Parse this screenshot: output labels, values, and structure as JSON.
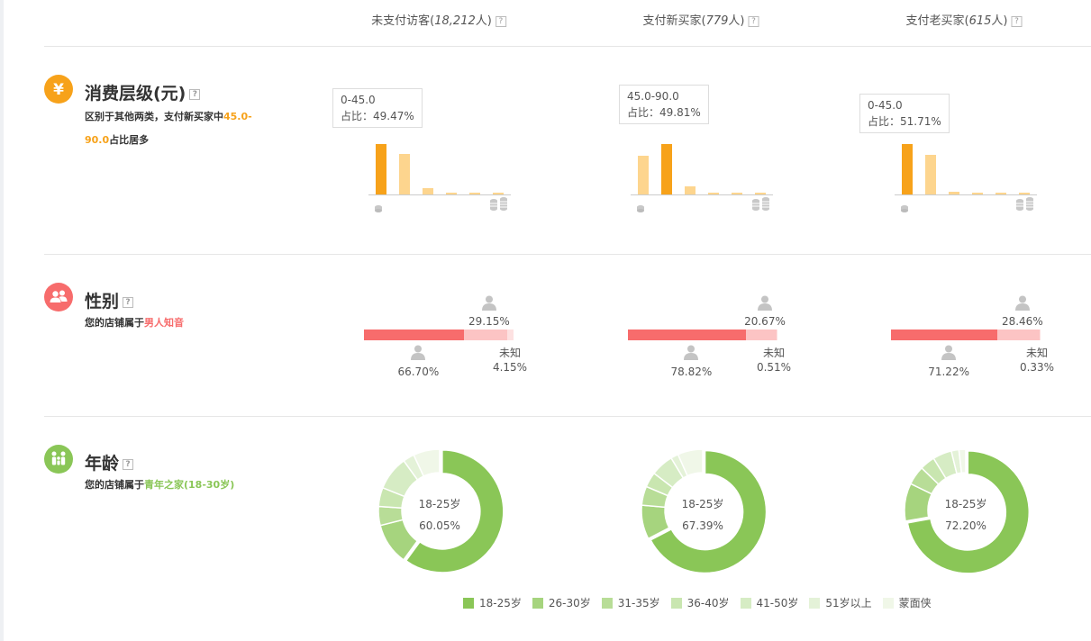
{
  "columns": [
    {
      "label": "未支付访客(",
      "count": "18,212",
      "suffix": "人)"
    },
    {
      "label": "支付新买家(",
      "count": "779",
      "suffix": "人)"
    },
    {
      "label": "支付老买家(",
      "count": "615",
      "suffix": "人)"
    }
  ],
  "help_mark": "?",
  "sections": {
    "consumption": {
      "title": "消费层级(元)",
      "desc_prefix": "区别于其他两类，支付新买家中",
      "desc_highlight": "45.0-90.0",
      "desc_suffix": "占比居多",
      "icon": "yuan-icon",
      "color": "#f7a21a"
    },
    "gender": {
      "title": "性别",
      "desc_prefix": "您的店铺属于",
      "desc_highlight": "男人知音",
      "icon": "people-icon",
      "color": "#f76c6c"
    },
    "age": {
      "title": "年龄",
      "desc_prefix": "您的店铺属于",
      "desc_highlight": "青年之家(18-30岁)",
      "icon": "family-icon",
      "color": "#8ac657"
    }
  },
  "chart_data": [
    {
      "type": "bar",
      "series_name": "未支付访客",
      "values": [
        49.47,
        40.0,
        6.0,
        2.0,
        1.0,
        1.0
      ],
      "tooltip": {
        "range": "0-45.0",
        "share": "占比：49.47%"
      },
      "highlight_index": 0
    },
    {
      "type": "bar",
      "series_name": "支付新买家",
      "values": [
        38.0,
        49.81,
        8.0,
        2.0,
        1.0,
        1.0
      ],
      "tooltip": {
        "range": "45.0-90.0",
        "share": "占比：49.81%"
      },
      "highlight_index": 1
    },
    {
      "type": "bar",
      "series_name": "支付老买家",
      "values": [
        51.71,
        41.0,
        3.0,
        1.0,
        1.0,
        1.0
      ],
      "tooltip": {
        "range": "0-45.0",
        "share": "占比：51.71%"
      },
      "highlight_index": 0
    }
  ],
  "gender_data": [
    {
      "male": "66.70%",
      "female": "29.15%",
      "unknown_label": "未知",
      "unknown": "4.15%",
      "male_v": 66.7,
      "female_v": 29.15,
      "unknown_v": 4.15
    },
    {
      "male": "78.82%",
      "female": "20.67%",
      "unknown_label": "未知",
      "unknown": "0.51%",
      "male_v": 78.82,
      "female_v": 20.67,
      "unknown_v": 0.51
    },
    {
      "male": "71.22%",
      "female": "28.46%",
      "unknown_label": "未知",
      "unknown": "0.33%",
      "male_v": 71.22,
      "female_v": 28.46,
      "unknown_v": 0.33
    }
  ],
  "age_data": [
    {
      "label": "18-25岁",
      "value": "60.05%",
      "slices": [
        60.05,
        11.0,
        5.0,
        5.0,
        9.0,
        3.0,
        6.95
      ]
    },
    {
      "label": "18-25岁",
      "value": "67.39%",
      "slices": [
        67.39,
        9.0,
        5.0,
        4.0,
        6.0,
        2.0,
        6.61
      ]
    },
    {
      "label": "18-25岁",
      "value": "72.20%",
      "slices": [
        72.2,
        10.0,
        5.0,
        4.0,
        5.0,
        2.0,
        1.8
      ]
    }
  ],
  "age_legend": [
    "18-25岁",
    "26-30岁",
    "31-35岁",
    "36-40岁",
    "41-50岁",
    "51岁以上",
    "蒙面侠"
  ],
  "colors": {
    "bar_highlight": "#f7a21a",
    "bar_normal": "#fdd58e",
    "male": "#f76c6c",
    "female": "#fcc4c4",
    "unknown": "#fde1e1",
    "age": [
      "#8ac657",
      "#a6d47e",
      "#b8dd97",
      "#c9e6b0",
      "#d6ecc4",
      "#e4f2d8",
      "#f0f7e8"
    ]
  }
}
